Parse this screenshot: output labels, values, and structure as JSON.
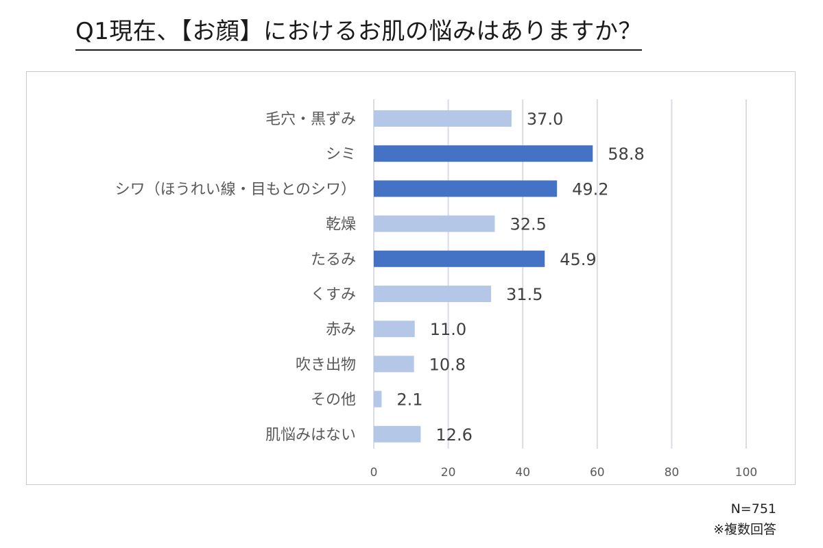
{
  "title": "Q1現在、【お顔】におけるお肌の悩みはありますか？",
  "notes": {
    "sample_size": "N=751",
    "multi_answer": "※複数回答"
  },
  "colors": {
    "highlight": "#4472c4",
    "normal": "#b4c7e7",
    "grid": "#d9dde3",
    "label": "#595959",
    "value": "#404040"
  },
  "chart_data": {
    "type": "bar",
    "orientation": "horizontal",
    "categories": [
      "毛穴・黒ずみ",
      "シミ",
      "シワ（ほうれい線・目もとのシワ）",
      "乾燥",
      "たるみ",
      "くすみ",
      "赤み",
      "吹き出物",
      "その他",
      "肌悩みはない"
    ],
    "values": [
      37.0,
      58.8,
      49.2,
      32.5,
      45.9,
      31.5,
      11.0,
      10.8,
      2.1,
      12.6
    ],
    "value_labels": [
      "37.0",
      "58.8",
      "49.2",
      "32.5",
      "45.9",
      "31.5",
      "11.0",
      "10.8",
      "2.1",
      "12.6"
    ],
    "highlighted": [
      false,
      true,
      true,
      false,
      true,
      false,
      false,
      false,
      false,
      false
    ],
    "xlim": [
      0,
      100
    ],
    "xticks": [
      0,
      20,
      40,
      60,
      80,
      100
    ],
    "grid": true,
    "legend": "none",
    "xlabel": "",
    "ylabel": ""
  }
}
